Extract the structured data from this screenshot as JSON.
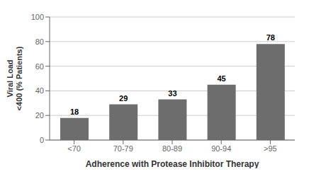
{
  "chart_data": {
    "type": "bar",
    "xlabel": "Adherence with Protease Inhibitor Therapy",
    "ylabel": "Viral Load\n<400 (% Patients)",
    "categories": [
      "<70",
      "70-79",
      "80-89",
      "90-94",
      ">95"
    ],
    "values": [
      18,
      29,
      33,
      45,
      78
    ],
    "color": "#6d6d6d",
    "ylim": [
      0,
      100
    ],
    "yticks": [
      0,
      20,
      40,
      60,
      80,
      100
    ],
    "grid": true,
    "data_labels": true
  }
}
